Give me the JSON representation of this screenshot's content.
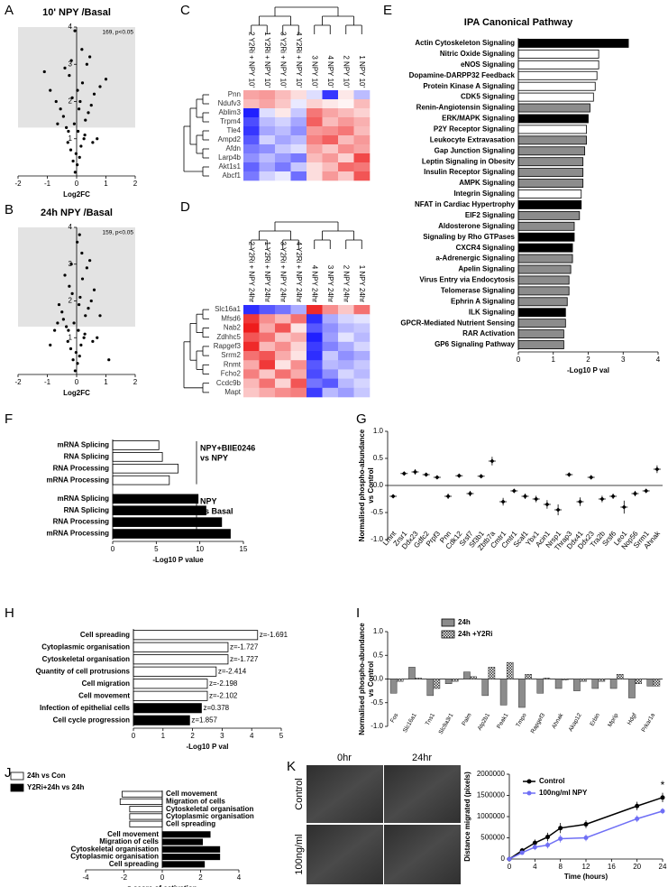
{
  "chart_data": [
    {
      "panel": "A",
      "type": "scatter",
      "title": "10' NPY /Basal",
      "annotation": "169, p<0.05",
      "xlabel": "Log2FC",
      "xlim": [
        -2,
        2
      ],
      "ylim": [
        0,
        4
      ],
      "xticks": [
        -2,
        -1,
        0,
        1,
        2
      ],
      "yticks": [
        1,
        2,
        3,
        4
      ],
      "threshold": 1.3,
      "color": "#000000",
      "x": [
        -0.05,
        0.02,
        0.1,
        -0.12,
        0.15,
        -0.2,
        0.25,
        -0.3,
        0.05,
        -0.08,
        0.3,
        -0.35,
        0.4,
        -0.45,
        0.5,
        -0.55,
        0.6,
        -0.7,
        0.8,
        -0.9,
        1.0,
        -1.1,
        0.12,
        -0.15,
        0.2,
        -0.25,
        0.35,
        -0.4,
        0.45,
        0.08,
        -0.02,
        0.18,
        -0.18,
        0.28,
        -0.28,
        0.55,
        -0.65,
        0.7,
        0.03,
        -0.06
      ],
      "y": [
        0.1,
        0.3,
        0.5,
        0.4,
        0.8,
        0.7,
        1.0,
        0.9,
        1.2,
        1.4,
        1.5,
        1.3,
        1.7,
        1.6,
        1.9,
        1.8,
        2.2,
        2.0,
        2.4,
        2.3,
        2.6,
        2.8,
        2.0,
        2.1,
        2.5,
        2.7,
        3.0,
        2.9,
        3.2,
        1.8,
        0.6,
        3.4,
        3.1,
        1.1,
        1.2,
        0.9,
        1.4,
        1.0,
        2.3,
        3.9
      ]
    },
    {
      "panel": "B",
      "type": "scatter",
      "title": "24h NPY /Basal",
      "annotation": "159, p<0.05",
      "xlabel": "Log2FC",
      "xlim": [
        -2,
        2
      ],
      "ylim": [
        0,
        4
      ],
      "xticks": [
        -2,
        -1,
        0,
        1,
        2
      ],
      "yticks": [
        1,
        2,
        3,
        4
      ],
      "threshold": 1.3,
      "color": "#000000",
      "x": [
        -0.05,
        0.03,
        0.1,
        -0.12,
        0.15,
        -0.2,
        0.25,
        -0.3,
        0.06,
        -0.09,
        0.3,
        -0.35,
        0.4,
        -0.45,
        0.5,
        -0.5,
        0.6,
        -0.6,
        0.8,
        -0.75,
        1.1,
        -0.9,
        0.12,
        -0.15,
        0.2,
        -0.25,
        0.35,
        -0.4,
        0.45,
        0.08,
        -0.02,
        0.18,
        -0.18,
        0.28,
        -0.28,
        0.55,
        -0.65,
        0.7,
        0.02,
        0.1
      ],
      "y": [
        0.1,
        0.3,
        0.5,
        0.4,
        0.8,
        0.7,
        1.0,
        0.9,
        1.2,
        1.4,
        1.6,
        1.3,
        1.8,
        1.5,
        2.0,
        1.7,
        2.3,
        1.9,
        1.6,
        1.2,
        0.4,
        0.8,
        2.1,
        2.2,
        2.6,
        2.4,
        2.9,
        2.7,
        3.1,
        1.9,
        0.6,
        3.3,
        3.0,
        1.1,
        1.2,
        0.9,
        1.4,
        1.0,
        3.6,
        3.8
      ]
    },
    {
      "panel": "C",
      "type": "heatmap",
      "colors": [
        "#2020ff",
        "#ffffff",
        "#ee1c1c"
      ],
      "columns": [
        "2 Y2Ri + NPY 10'",
        "1 Y2Ri + NPY 10'",
        "3 Y2Ri + NPY 10'",
        "4 Y2Ri + NPY 10'",
        "3 NPY 10'",
        "4 NPY 10'",
        "2 NPY 10'",
        "1 NPY 10'"
      ],
      "rows": [
        "Pnn",
        "Ndufv3",
        "Ablim3",
        "Trpm4",
        "Tle4",
        "Ampd2",
        "Afdn",
        "Larp4b",
        "Akt1s1",
        "Abcf1"
      ],
      "matrix": [
        [
          0.8,
          0.9,
          0.6,
          0.3,
          -0.3,
          -1.8,
          0.2,
          -0.6
        ],
        [
          0.6,
          0.8,
          0.5,
          -0.2,
          0.4,
          0.2,
          0.1,
          0.6
        ],
        [
          -2,
          -0.3,
          0.2,
          -0.5,
          1.2,
          0.8,
          0.6,
          0.4
        ],
        [
          -1.6,
          -0.6,
          -0.4,
          -0.8,
          1.4,
          0.6,
          0.9,
          0.7
        ],
        [
          -1.8,
          -0.8,
          -0.6,
          -1.0,
          0.9,
          1.0,
          1.2,
          0.6
        ],
        [
          -1.5,
          -0.4,
          -0.8,
          -0.6,
          1.1,
          1.4,
          0.6,
          0.9
        ],
        [
          -1.2,
          -1.0,
          -0.5,
          -0.3,
          0.8,
          0.5,
          1.0,
          0.8
        ],
        [
          -1.0,
          -0.6,
          -0.9,
          -1.2,
          0.6,
          0.9,
          0.4,
          1.6
        ],
        [
          -1.4,
          -0.8,
          -1.2,
          -0.5,
          0.3,
          0.6,
          1.3,
          1.2
        ],
        [
          -1.2,
          -0.4,
          -0.2,
          -1.3,
          0.3,
          0.9,
          0.5,
          1.5
        ]
      ]
    },
    {
      "panel": "D",
      "type": "heatmap",
      "colors": [
        "#2020ff",
        "#ffffff",
        "#ee1c1c"
      ],
      "columns": [
        "2 Y2Ri + NPY 24hr",
        "1 Y2Ri + NPY 24hr",
        "3 Y2Ri + NPY 24hr",
        "4 Y2Ri + NPY 24hr",
        "4 NPY 24hr",
        "3 NPY 24hr",
        "2 NPY 24hr",
        "1 NPY 24hr"
      ],
      "rows": [
        "Slc16a1",
        "Mfsd6",
        "Nab2",
        "Zdhhc5",
        "Rapgef3",
        "Srrm2",
        "Rnmt",
        "Fcho2",
        "Ccdc9b",
        "Mapt"
      ],
      "matrix": [
        [
          -1.5,
          -1.2,
          -1.0,
          -0.6,
          1.5,
          0.8,
          0.4,
          1.0
        ],
        [
          1.4,
          0.8,
          0.5,
          1.0,
          -1.5,
          -0.6,
          -0.3,
          -0.2
        ],
        [
          1.6,
          0.6,
          1.2,
          0.2,
          -1.2,
          -0.8,
          -0.5,
          -0.4
        ],
        [
          1.2,
          1.0,
          0.4,
          0.6,
          -1.6,
          -0.7,
          -0.2,
          -0.5
        ],
        [
          1.5,
          0.5,
          0.8,
          0.3,
          -1.4,
          -0.9,
          -0.6,
          -0.3
        ],
        [
          1.0,
          1.2,
          0.6,
          0.2,
          -1.5,
          -0.4,
          -0.8,
          -0.6
        ],
        [
          0.6,
          1.4,
          0.2,
          0.8,
          -1.2,
          -0.5,
          -0.6,
          -0.4
        ],
        [
          0.9,
          0.4,
          1.0,
          0.6,
          -1.3,
          -0.8,
          -0.3,
          -0.5
        ],
        [
          0.5,
          1.0,
          0.3,
          1.2,
          -1.0,
          -1.2,
          -0.5,
          -0.3
        ],
        [
          0.4,
          0.6,
          0.8,
          0.9,
          -1.4,
          -0.5,
          -0.7,
          -0.4
        ]
      ]
    },
    {
      "panel": "E",
      "type": "bar",
      "orientation": "horizontal",
      "title": "IPA Canonical Pathway",
      "xlabel": "-Log10 P val",
      "xlim": [
        0,
        4
      ],
      "xticks": [
        0,
        1,
        2,
        3,
        4
      ],
      "categories": [
        "Actin Cytoskeleton Signaling",
        "Nitric Oxide Signaling",
        "eNOS Signaling",
        "Dopamine-DARPP32 Feedback",
        "Protein Kinase A Signaling",
        "CDK5 Signaling",
        "Renin-Angiotensin Signaling",
        "ERK/MAPK Signaling",
        "P2Y Receptor Signaling",
        "Leukocyte Extravasation",
        "Gap Junction Signaling",
        "Leptin Signaling in Obesity",
        "Insulin Receptor Signaling",
        "AMPK Signaling",
        "Integrin Signaling",
        "NFAT in Cardiac Hypertrophy",
        "EIF2 Signaling",
        "Aldosterone Signaling",
        "Signaling by Rho GTPases",
        "CXCR4 Signaling",
        "a-Adrenergic Signaling",
        "Apelin Signaling",
        "Virus Entry via Endocytosis",
        "Telomerase Signaling",
        "Ephrin A Signaling",
        "ILK Signaling",
        "GPCR-Mediated Nutrient Sensing",
        "RAR Activation",
        "GP6 Signaling Pathway"
      ],
      "values": [
        3.15,
        2.3,
        2.3,
        2.25,
        2.2,
        2.15,
        2.05,
        2.0,
        1.95,
        1.95,
        1.9,
        1.85,
        1.85,
        1.85,
        1.8,
        1.8,
        1.75,
        1.6,
        1.6,
        1.55,
        1.55,
        1.5,
        1.45,
        1.45,
        1.4,
        1.35,
        1.35,
        1.3,
        1.3
      ],
      "colors": [
        "#000000",
        "#ffffff",
        "#ffffff",
        "#ffffff",
        "#ffffff",
        "#ffffff",
        "#8c8c8c",
        "#000000",
        "#ffffff",
        "#8c8c8c",
        "#8c8c8c",
        "#8c8c8c",
        "#8c8c8c",
        "#8c8c8c",
        "#ffffff",
        "#000000",
        "#8c8c8c",
        "#8c8c8c",
        "#000000",
        "#000000",
        "#8c8c8c",
        "#8c8c8c",
        "#8c8c8c",
        "#8c8c8c",
        "#8c8c8c",
        "#000000",
        "#8c8c8c",
        "#8c8c8c",
        "#8c8c8c"
      ]
    },
    {
      "panel": "F",
      "type": "bar",
      "orientation": "horizontal",
      "xlabel": "-Log10 P value",
      "xlim": [
        0,
        15
      ],
      "xticks": [
        0,
        5,
        10,
        15
      ],
      "categories": [
        "mRNA Splicing",
        "RNA Splicing",
        "RNA Processing",
        "mRNA Processing"
      ],
      "series": [
        {
          "label": [
            "NPY+BIIE0246",
            "vs NPY"
          ],
          "color": "#ffffff",
          "values": [
            5.3,
            5.7,
            7.5,
            6.5
          ]
        },
        {
          "label": [
            "NPY",
            "vs Basal"
          ],
          "color": "#000000",
          "values": [
            9.8,
            10.7,
            12.5,
            13.5
          ]
        }
      ]
    },
    {
      "panel": "G",
      "type": "dot",
      "ylabel": [
        "Normalised phospho-abundance",
        "vs Control"
      ],
      "ylim": [
        -1,
        1
      ],
      "yticks": [
        {
          "value": -1,
          "label": "-1.0"
        },
        {
          "value": -0.5,
          "label": "-0.5"
        },
        {
          "value": 0,
          "label": "0.0"
        },
        {
          "value": 0.5,
          "label": "0.5"
        },
        {
          "value": 1,
          "label": "1.0"
        }
      ],
      "categories": [
        "Lmnt",
        "Zrsr1",
        "Ddx23",
        "Gdfc2",
        "Prpf3",
        "Pnn",
        "Cdk12",
        "Srsf7",
        "Sf3b1",
        "Zbtb7a",
        "Cmtr1",
        "Cmtr1",
        "Scaf1",
        "Ybx1",
        "Acin1",
        "Nrsp1",
        "Thrap3",
        "Ddx41",
        "Ddx23",
        "Tra2b",
        "Srsf6",
        "Leo1",
        "Nop56",
        "Srrm1",
        "Ahnak"
      ],
      "values": [
        -0.2,
        0.22,
        0.25,
        0.2,
        0.15,
        -0.2,
        0.18,
        -0.15,
        0.17,
        0.45,
        -0.3,
        -0.1,
        -0.2,
        -0.25,
        -0.35,
        -0.45,
        0.2,
        -0.3,
        0.15,
        -0.25,
        -0.2,
        -0.4,
        -0.15,
        -0.1,
        0.3
      ],
      "errors": [
        0.02,
        0.02,
        0.05,
        0.03,
        0.03,
        0.05,
        0.03,
        0.05,
        0.03,
        0.08,
        0.07,
        0.04,
        0.05,
        0.06,
        0.08,
        0.1,
        0.04,
        0.08,
        0.04,
        0.06,
        0.05,
        0.12,
        0.05,
        0.04,
        0.07
      ]
    },
    {
      "panel": "H",
      "type": "bar",
      "orientation": "horizontal",
      "xlabel": "-Log10 P val",
      "xlim": [
        0,
        5
      ],
      "xticks": [
        0,
        1,
        2,
        3,
        4,
        5
      ],
      "categories": [
        "Cell spreading",
        "Cytoplasmic organisation",
        "Cytoskeletal organisation",
        "Quantity of cell protrusions",
        "Cell migration",
        "Cell movement",
        "Infection of epithelial cells",
        "Cell cycle progression"
      ],
      "values": [
        4.2,
        3.2,
        3.2,
        2.8,
        2.5,
        2.5,
        2.3,
        1.9
      ],
      "colors": [
        "#ffffff",
        "#ffffff",
        "#ffffff",
        "#ffffff",
        "#ffffff",
        "#ffffff",
        "#000000",
        "#000000"
      ],
      "annotations": [
        "z=-1.691",
        "z=-1.727",
        "z=-1.727",
        "z=-2.414",
        "z=-2.198",
        "z=-2.102",
        "z=0.378",
        "z=1.857"
      ]
    },
    {
      "panel": "I",
      "type": "bar",
      "orientation": "vertical",
      "ylabel": [
        "Normalised phospho-abundance",
        "vs Control"
      ],
      "ylim": [
        -1,
        1
      ],
      "yticks": [
        {
          "value": -1,
          "label": "-1.0"
        },
        {
          "value": -0.5,
          "label": "-0.5"
        },
        {
          "value": 0,
          "label": "0.0"
        },
        {
          "value": 0.5,
          "label": "0.5"
        },
        {
          "value": 1,
          "label": "1.0"
        }
      ],
      "categories": [
        "Fos",
        "Slc16a1",
        "Tns1",
        "Slc9a3r1",
        "Palm",
        "Atp2b1",
        "Peak1",
        "Tmpo",
        "Rapgef3",
        "Ahnak",
        "Akap12",
        "Erbin",
        "Mprip",
        "Hdgf",
        "Prkar1a"
      ],
      "series": [
        {
          "name": "24h",
          "color": "#8c8c8c",
          "values": [
            -0.3,
            0.25,
            -0.35,
            -0.1,
            0.15,
            -0.35,
            -0.55,
            -0.6,
            -0.3,
            -0.2,
            -0.25,
            -0.2,
            -0.2,
            -0.4,
            -0.15
          ]
        },
        {
          "name": "24h +Y2Ri",
          "color": "#555555",
          "pattern": "checkered",
          "values": [
            -0.05,
            0.02,
            -0.2,
            -0.05,
            0.05,
            0.25,
            0.35,
            0.1,
            0.02,
            -0.02,
            -0.05,
            -0.05,
            0.1,
            -0.1,
            -0.15
          ]
        }
      ]
    },
    {
      "panel": "J",
      "type": "bar",
      "orientation": "horizontal",
      "xlabel": "z-score of activation",
      "xlim": [
        -4,
        4
      ],
      "xticks": [
        -4,
        -2,
        0,
        2,
        4
      ],
      "categories": [
        "Cell movement",
        "Migration of cells",
        "Cytoskeletal organisation",
        "Cytoplasmic organisation",
        "Cell spreading"
      ],
      "series": [
        {
          "name": "24h vs Con",
          "color": "#ffffff",
          "values": [
            -2.1,
            -2.2,
            -1.7,
            -1.7,
            -1.7
          ]
        },
        {
          "name": "Y2Ri+24h vs 24h",
          "color": "#000000",
          "values": [
            2.5,
            2.1,
            3.0,
            3.0,
            2.2
          ]
        }
      ]
    },
    {
      "panel": "K",
      "type": "line",
      "image_columns": [
        "0hr",
        "24hr"
      ],
      "image_rows": [
        "Control",
        "100ng/ml"
      ],
      "xlabel": "Time (hours)",
      "ylabel": "Distance migrated (pixels)",
      "significance": "*",
      "xlim": [
        0,
        24
      ],
      "ylim": [
        0,
        2000000
      ],
      "xticks": [
        0,
        4,
        8,
        12,
        16,
        20,
        24
      ],
      "yticks": [
        0,
        500000,
        1000000,
        1500000,
        2000000
      ],
      "x": [
        0,
        2,
        4,
        6,
        8,
        12,
        20,
        24
      ],
      "series": [
        {
          "name": "Control",
          "color": "#000000",
          "values": [
            0,
            200000,
            380000,
            520000,
            730000,
            820000,
            1250000,
            1450000
          ],
          "errors": [
            0,
            60000,
            80000,
            100000,
            120000,
            90000,
            100000,
            110000
          ]
        },
        {
          "name": "100ng/ml  NPY",
          "color": "#6f6ff5",
          "values": [
            0,
            150000,
            280000,
            330000,
            480000,
            500000,
            950000,
            1130000
          ],
          "errors": [
            0,
            50000,
            70000,
            80000,
            90000,
            80000,
            80000,
            70000
          ]
        }
      ]
    }
  ]
}
